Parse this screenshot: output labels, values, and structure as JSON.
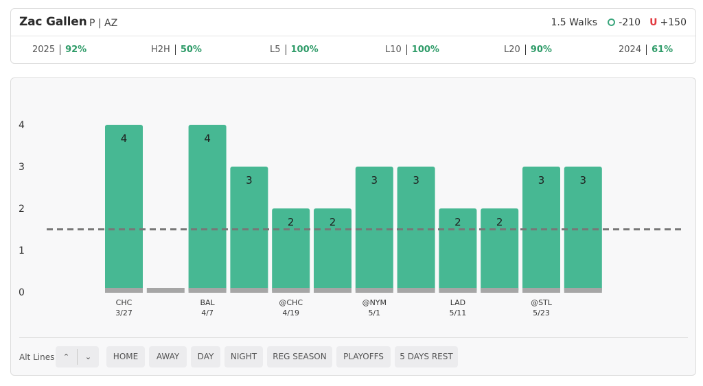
{
  "header": {
    "player_name": "Zac Gallen",
    "player_meta": "P | AZ",
    "prop_label": "1.5 Walks",
    "over_odds": "-210",
    "under_letter": "U",
    "under_odds": "+150",
    "over_color": "#3aa57c",
    "under_color": "#e2393f"
  },
  "stats": [
    {
      "label": "2025",
      "pct": "92%"
    },
    {
      "label": "H2H",
      "pct": "50%"
    },
    {
      "label": "L5",
      "pct": "100%"
    },
    {
      "label": "L10",
      "pct": "100%"
    },
    {
      "label": "L20",
      "pct": "90%"
    },
    {
      "label": "2024",
      "pct": "61%"
    }
  ],
  "chart_data": {
    "type": "bar",
    "y_ticks": [
      "0",
      "1",
      "2",
      "3",
      "4"
    ],
    "ylim": [
      0,
      4
    ],
    "line_value": 1.5,
    "bar_color": "#47b893",
    "base_color": "#a6a6a6",
    "line_color": "#777777",
    "values": [
      4,
      0,
      4,
      3,
      2,
      2,
      3,
      3,
      2,
      2,
      3,
      3
    ],
    "x_labels": [
      {
        "index": 0,
        "team": "CHC",
        "date": "3/27"
      },
      {
        "index": 2,
        "team": "BAL",
        "date": "4/7"
      },
      {
        "index": 4,
        "team": "@CHC",
        "date": "4/19"
      },
      {
        "index": 6,
        "team": "@NYM",
        "date": "5/1"
      },
      {
        "index": 8,
        "team": "LAD",
        "date": "5/11"
      },
      {
        "index": 10,
        "team": "@STL",
        "date": "5/23"
      }
    ]
  },
  "filters": {
    "alt_lines_label": "Alt Lines",
    "up_glyph": "⌃",
    "down_glyph": "⌄",
    "chips": [
      "HOME",
      "AWAY",
      "DAY",
      "NIGHT",
      "REG SEASON",
      "PLAYOFFS",
      "5 DAYS REST"
    ]
  }
}
